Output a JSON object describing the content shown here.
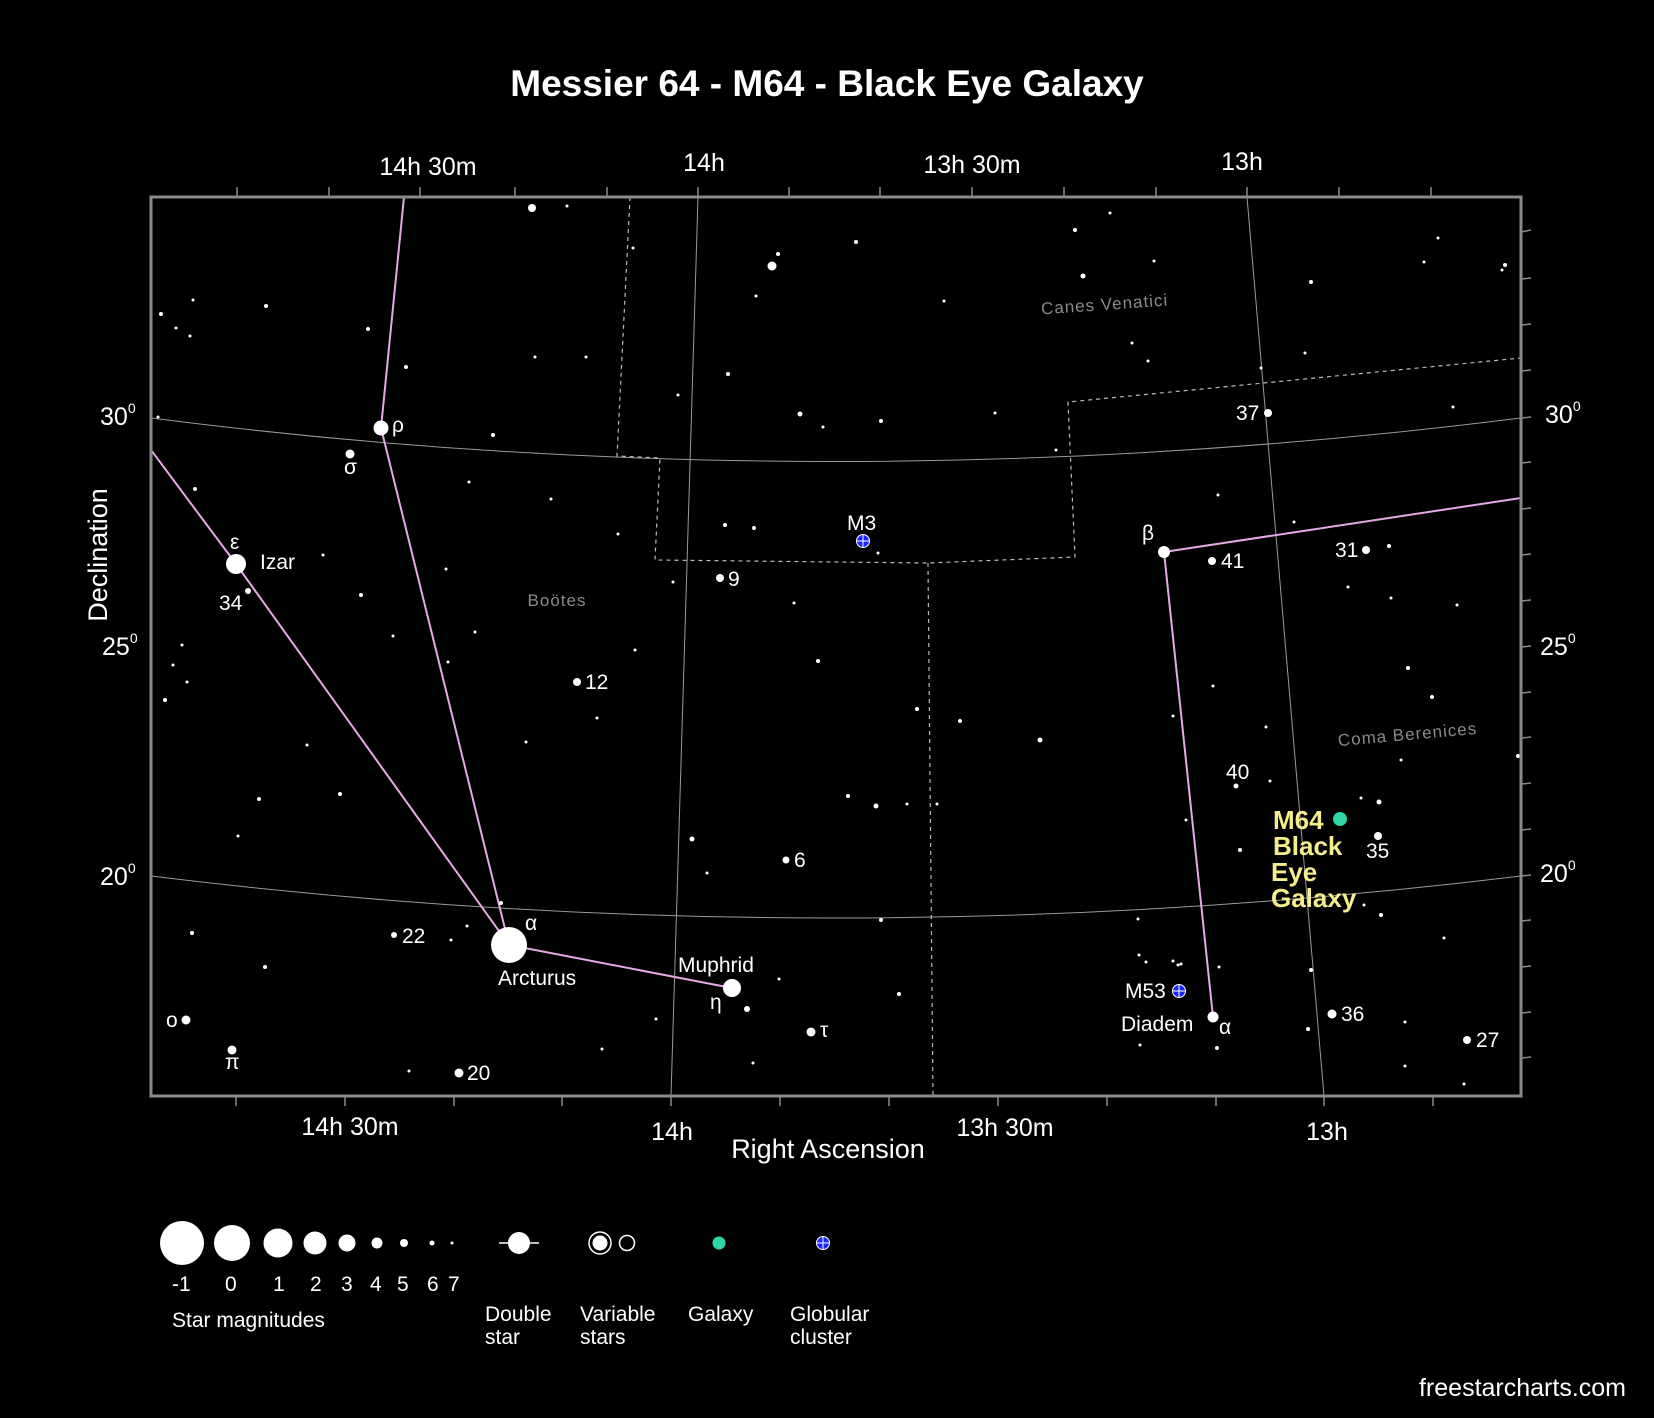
{
  "title": "Messier 64 - M64 - Black Eye Galaxy",
  "axes": {
    "xlabel": "Right Ascension",
    "ylabel": "Declination",
    "ra_ticks_top": [
      "14h 30m",
      "14h",
      "13h 30m",
      "13h"
    ],
    "ra_ticks_bottom": [
      "14h 30m",
      "14h",
      "13h 30m",
      "13h"
    ],
    "dec_ticks": [
      {
        "value": "30",
        "sup": "0"
      },
      {
        "value": "25",
        "sup": "0"
      },
      {
        "value": "20",
        "sup": "0"
      }
    ]
  },
  "constellations": {
    "canes_venatici": "Canes Venatici",
    "bootes": "Boötes",
    "coma_berenices": "Coma Berenices"
  },
  "target": {
    "name": "M64",
    "lines": [
      "M64",
      "Black",
      "Eye",
      "Galaxy"
    ],
    "color": "#2fd6a8",
    "label_color": "#f5ec8c"
  },
  "labels": {
    "izar": "Izar",
    "epsilon": "ε",
    "rho": "ρ",
    "sigma": "σ",
    "n34": "34",
    "m3": "M3",
    "n9": "9",
    "n12": "12",
    "n6": "6",
    "n22": "22",
    "alpha_boo": "α",
    "arcturus": "Arcturus",
    "muphrid": "Muphrid",
    "eta": "η",
    "tau": "τ",
    "omicron": "o",
    "pi": "π",
    "n20": "20",
    "n37": "37",
    "beta": "β",
    "n41": "41",
    "n31": "31",
    "n40": "40",
    "n35": "35",
    "m53": "M53",
    "diadem": "Diadem",
    "alpha_com": "α",
    "n36": "36",
    "n27": "27"
  },
  "legend": {
    "magnitudes": [
      "-1",
      "0",
      "1",
      "2",
      "3",
      "4",
      "5",
      "6",
      "7"
    ],
    "magnitudes_title": "Star magnitudes",
    "double_star": [
      "Double",
      "star"
    ],
    "variable_stars": [
      "Variable",
      "stars"
    ],
    "galaxy": "Galaxy",
    "globular_cluster": [
      "Globular",
      "cluster"
    ]
  },
  "colors": {
    "background": "#000000",
    "constellation_lines": "#e6a8e6",
    "grid": "#9a9a9a",
    "galaxy": "#2fd6a8",
    "globular_cluster": "#1a2aff"
  },
  "credit": "freestarcharts.com"
}
